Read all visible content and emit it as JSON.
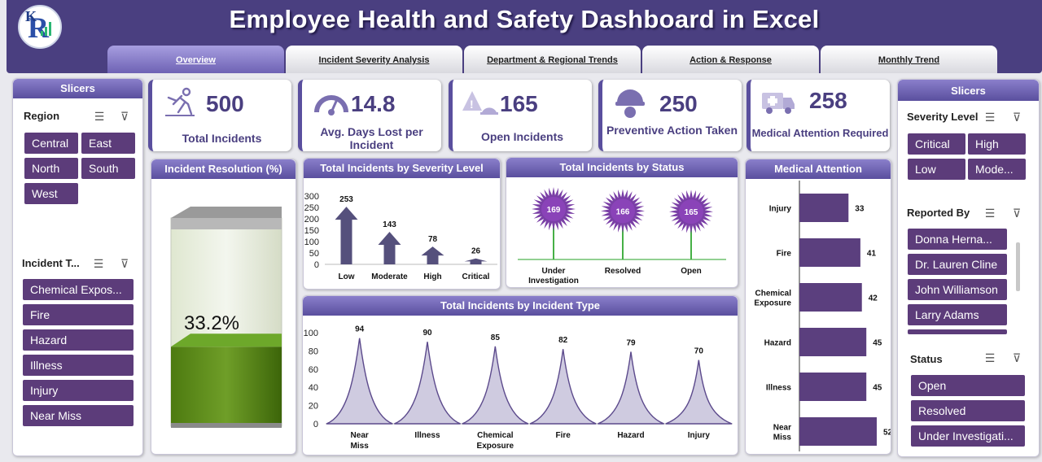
{
  "title": "Employee Health and Safety Dashboard in Excel",
  "tabs": [
    "Overview",
    "Incident Severity Analysis",
    "Department & Regional Trends",
    "Action & Response",
    "Monthly Trend"
  ],
  "left_slicers": {
    "title": "Slicers",
    "region": {
      "label": "Region",
      "items": [
        "Central",
        "East",
        "North",
        "South",
        "West"
      ]
    },
    "incident_type": {
      "label": "Incident T...",
      "items": [
        "Chemical Expos...",
        "Fire",
        "Hazard",
        "Illness",
        "Injury",
        "Near Miss"
      ]
    }
  },
  "right_slicers": {
    "title": "Slicers",
    "severity": {
      "label": "Severity Level",
      "items": [
        "Critical",
        "High",
        "Low",
        "Mode..."
      ]
    },
    "reported_by": {
      "label": "Reported By",
      "items": [
        "Donna Herna...",
        "Dr. Lauren Cline",
        "John Williamson",
        "Larry Adams"
      ]
    },
    "status": {
      "label": "Status",
      "items": [
        "Open",
        "Resolved",
        "Under Investigati..."
      ]
    }
  },
  "kpis": [
    {
      "value": "500",
      "label": "Total Incidents",
      "icon": "falling-person-icon"
    },
    {
      "value": "14.8",
      "label": "Avg. Days Lost per Incident",
      "icon": "gauge-icon"
    },
    {
      "value": "165",
      "label": "Open Incidents",
      "icon": "alarm-icon"
    },
    {
      "value": "250",
      "label": "Preventive Action Taken",
      "icon": "safety-helmet-icon"
    },
    {
      "value": "258",
      "label": "Medical Attention  Required",
      "icon": "ambulance-icon"
    }
  ],
  "resolution": {
    "title": "Incident Resolution  (%)",
    "value_label": "33.2%",
    "fraction": 0.332
  },
  "chart_data": [
    {
      "type": "bar",
      "title": "Total Incidents by Severity Level",
      "categories": [
        "Low",
        "Moderate",
        "High",
        "Critical"
      ],
      "values": [
        253,
        143,
        78,
        26
      ],
      "yticks": [
        "300",
        "250",
        "200",
        "150",
        "100",
        "50",
        "0"
      ],
      "ylim": [
        0,
        300
      ]
    },
    {
      "type": "bar",
      "title": "Total Incidents by Status",
      "categories": [
        "Under Investigation",
        "Resolved",
        "Open"
      ],
      "values": [
        169,
        166,
        165
      ]
    },
    {
      "type": "area",
      "title": "Total Incidents by Incident Type",
      "categories": [
        "Near Miss",
        "Illness",
        "Chemical Exposure",
        "Fire",
        "Hazard",
        "Injury"
      ],
      "values": [
        94,
        90,
        85,
        82,
        79,
        70
      ],
      "yticks": [
        "100",
        "80",
        "60",
        "40",
        "20",
        "0"
      ],
      "ylim": [
        0,
        100
      ]
    },
    {
      "type": "bar",
      "title": "Medical Attention",
      "categories": [
        "Injury",
        "Fire",
        "Chemical Exposure",
        "Hazard",
        "Illness",
        "Near Miss"
      ],
      "values": [
        33,
        41,
        42,
        45,
        45,
        52
      ]
    }
  ],
  "colors": {
    "header": "#4a3f80",
    "accent": "#5a4f9e",
    "slicer": "#5c3c7a",
    "bar": "#5b3f7e",
    "spike": "#7a3fa6",
    "stem": "#46b046"
  }
}
